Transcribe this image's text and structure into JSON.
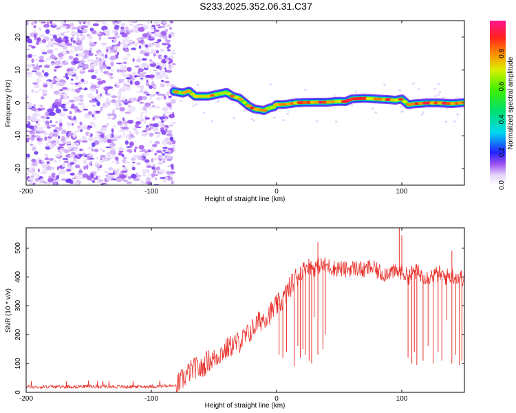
{
  "title": "S233.2025.352.06.31.C37",
  "chart_data": [
    {
      "type": "heatmap",
      "xlabel": "Height of straight line (km)",
      "ylabel": "Frequency (Hz)",
      "xlim": [
        -200,
        150
      ],
      "ylim": [
        -25,
        25
      ],
      "x_ticks": [
        "-200",
        "-100",
        "0",
        "100"
      ],
      "x_tick_values": [
        -200,
        -100,
        0,
        100
      ],
      "y_ticks": [
        "20",
        "10",
        "0",
        "-10",
        "-20"
      ],
      "y_tick_values": [
        20,
        10,
        0,
        -10,
        -20
      ],
      "colorbar": {
        "label": "Normalized spectral amplitude",
        "range": [
          0,
          1
        ],
        "ticks": [
          "0.0",
          "0.2",
          "0.4",
          "0.6",
          "0.8"
        ],
        "tick_values": [
          0.0,
          0.2,
          0.4,
          0.6,
          0.8
        ]
      },
      "noise_region_x": [
        -200,
        -82
      ],
      "ridge": {
        "x": [
          -82,
          -75,
          -70,
          -65,
          -55,
          -45,
          -40,
          -35,
          -30,
          -22,
          -18,
          -15,
          -10,
          -6,
          -2,
          0,
          5,
          10,
          15,
          20,
          30,
          40,
          50,
          55,
          60,
          70,
          80,
          90,
          95,
          100,
          105,
          110,
          120,
          130,
          140,
          150
        ],
        "frequency_hz": [
          3.5,
          3,
          3.6,
          2,
          2,
          2.8,
          3.2,
          2,
          1.5,
          -1,
          -1.8,
          -2,
          -2.3,
          -1.6,
          -1.2,
          -0.5,
          -0.5,
          -0.3,
          0,
          0.1,
          0.2,
          0.2,
          0.5,
          0.4,
          1.2,
          1.4,
          1.2,
          1,
          0.8,
          1.2,
          -0.5,
          -0.3,
          0,
          0,
          -0.2,
          0.1
        ],
        "amplitude": [
          0.75,
          0.85,
          0.85,
          0.8,
          0.8,
          0.85,
          0.9,
          0.8,
          0.75,
          0.8,
          0.9,
          0.9,
          0.85,
          0.8,
          0.85,
          0.9,
          0.85,
          0.9,
          0.9,
          0.9,
          0.95,
          0.95,
          0.9,
          0.95,
          0.95,
          0.95,
          0.9,
          0.9,
          0.85,
          0.9,
          0.85,
          0.9,
          0.95,
          0.9,
          0.95,
          0.9
        ]
      }
    },
    {
      "type": "line",
      "xlabel": "Height of straight line (km)",
      "ylabel": "SNR (10 * v/v)",
      "xlim": [
        -200,
        150
      ],
      "ylim": [
        0,
        570
      ],
      "x_ticks": [
        "-200",
        "-100",
        "0",
        "100"
      ],
      "x_tick_values": [
        -200,
        -100,
        0,
        100
      ],
      "y_ticks": [
        "0",
        "100",
        "200",
        "300",
        "400",
        "500"
      ],
      "y_tick_values": [
        0,
        100,
        200,
        300,
        400,
        500
      ],
      "series": [
        {
          "name": "SNR",
          "color": "#e8302a",
          "x": [
            -200,
            -190,
            -180,
            -170,
            -160,
            -150,
            -140,
            -130,
            -120,
            -110,
            -100,
            -90,
            -80,
            -75,
            -70,
            -65,
            -60,
            -55,
            -50,
            -45,
            -40,
            -35,
            -30,
            -25,
            -20,
            -15,
            -10,
            -5,
            0,
            5,
            10,
            15,
            20,
            25,
            30,
            35,
            40,
            45,
            50,
            55,
            60,
            65,
            70,
            75,
            80,
            85,
            90,
            95,
            100,
            105,
            110,
            115,
            120,
            125,
            130,
            135,
            140,
            145,
            150
          ],
          "values": [
            20,
            18,
            20,
            19,
            20,
            21,
            20,
            20,
            19,
            20,
            20,
            22,
            22,
            45,
            70,
            85,
            80,
            110,
            115,
            135,
            150,
            165,
            175,
            190,
            215,
            240,
            260,
            275,
            300,
            320,
            360,
            395,
            420,
            440,
            430,
            440,
            440,
            430,
            430,
            425,
            430,
            430,
            420,
            435,
            420,
            410,
            420,
            415,
            420,
            400,
            420,
            410,
            400,
            405,
            410,
            400,
            405,
            400,
            395
          ],
          "dropouts": [
            {
              "x": 2,
              "min": 130
            },
            {
              "x": 5,
              "min": 120
            },
            {
              "x": 8,
              "min": 140
            },
            {
              "x": 14,
              "min": 90
            },
            {
              "x": 17,
              "min": 160
            },
            {
              "x": 19,
              "min": 120
            },
            {
              "x": 21,
              "min": 150
            },
            {
              "x": 23,
              "min": 130
            },
            {
              "x": 26,
              "min": 110
            },
            {
              "x": 28,
              "min": 100
            },
            {
              "x": 30,
              "min": 260
            },
            {
              "x": 33,
              "min": 130
            },
            {
              "x": 37,
              "min": 150
            },
            {
              "x": 39,
              "min": 200
            },
            {
              "x": 105,
              "min": 120
            },
            {
              "x": 108,
              "min": 100
            },
            {
              "x": 110,
              "min": 140
            },
            {
              "x": 112,
              "min": 95
            },
            {
              "x": 117,
              "min": 110
            },
            {
              "x": 121,
              "min": 160
            },
            {
              "x": 125,
              "min": 100
            },
            {
              "x": 129,
              "min": 140
            },
            {
              "x": 132,
              "min": 110
            },
            {
              "x": 136,
              "min": 250
            },
            {
              "x": 140,
              "min": 100
            },
            {
              "x": 143,
              "min": 130
            },
            {
              "x": 146,
              "min": 95
            },
            {
              "x": 148,
              "min": 110
            }
          ],
          "peaks": [
            {
              "x": 33,
              "max": 520
            },
            {
              "x": 98,
              "max": 570
            },
            {
              "x": 100,
              "max": 545
            },
            {
              "x": 140,
              "max": 490
            }
          ]
        }
      ]
    }
  ]
}
